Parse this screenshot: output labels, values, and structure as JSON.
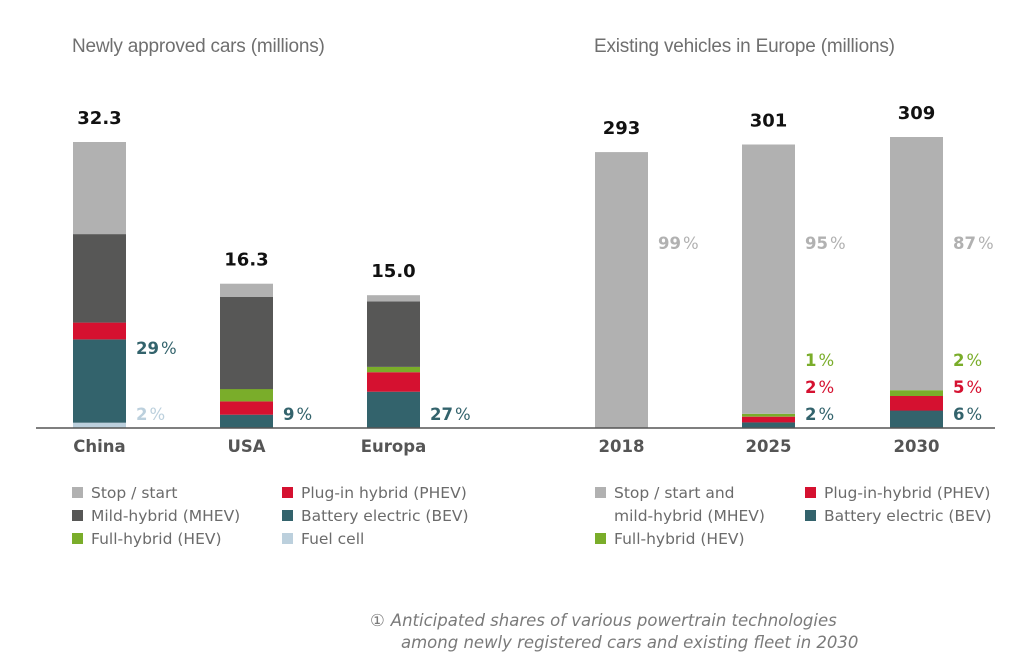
{
  "colors": {
    "stop_start": "#b1b1b1",
    "mhev": "#575756",
    "hev": "#7aad2a",
    "phev": "#d51130",
    "bev": "#33636c",
    "fuel_cell": "#bcd0dd",
    "axis": "#555555",
    "total_label": "#111111",
    "category_label": "#555555"
  },
  "chart_data": [
    {
      "type": "bar",
      "stacked": true,
      "title": "Newly approved cars (millions)",
      "categories": [
        "China",
        "USA",
        "Europa"
      ],
      "totals": [
        32.3,
        16.3,
        15.0
      ],
      "total_labels": [
        "32.3",
        "16.3",
        "15.0"
      ],
      "ylim": [
        0,
        32.3
      ],
      "grid": false,
      "series": [
        {
          "name": "Fuel cell",
          "key": "fuel_cell",
          "values": [
            0.6,
            0.0,
            0.0
          ]
        },
        {
          "name": "Battery electric (BEV)",
          "key": "bev",
          "values": [
            9.4,
            1.5,
            4.1
          ]
        },
        {
          "name": "Plug-in hybrid (PHEV)",
          "key": "phev",
          "values": [
            1.9,
            1.5,
            2.2
          ]
        },
        {
          "name": "Full-hybrid (HEV)",
          "key": "hev",
          "values": [
            0.0,
            1.4,
            0.6
          ]
        },
        {
          "name": "Mild-hybrid (MHEV)",
          "key": "mhev",
          "values": [
            10.0,
            10.4,
            7.4
          ]
        },
        {
          "name": "Stop/start",
          "key": "stop_start",
          "values": [
            10.4,
            1.5,
            0.7
          ]
        }
      ],
      "annotations": [
        {
          "category": "China",
          "series": "bev",
          "text": "29%"
        },
        {
          "category": "China",
          "series": "fuel_cell",
          "text": "2%"
        },
        {
          "category": "USA",
          "series": "bev",
          "text": "9%"
        },
        {
          "category": "Europa",
          "series": "bev",
          "text": "27%"
        }
      ],
      "legend": [
        {
          "label": "Stop / start",
          "key": "stop_start"
        },
        {
          "label": "Plug-in hybrid (PHEV)",
          "key": "phev"
        },
        {
          "label": "Mild-hybrid (MHEV)",
          "key": "mhev"
        },
        {
          "label": "Battery electric (BEV)",
          "key": "bev"
        },
        {
          "label": "Full-hybrid (HEV)",
          "key": "hev"
        },
        {
          "label": "Fuel cell",
          "key": "fuel_cell"
        }
      ],
      "legend_position": "bottom"
    },
    {
      "type": "bar",
      "stacked": true,
      "title": "Existing vehicles in Europe (millions)",
      "categories": [
        "2018",
        "2025",
        "2030"
      ],
      "totals": [
        293,
        301,
        309
      ],
      "total_labels": [
        "293",
        "301",
        "309"
      ],
      "ylim": [
        0,
        309
      ],
      "grid": false,
      "series_percent": [
        {
          "name": "Battery electric (BEV)",
          "key": "bev",
          "values": [
            0,
            2,
            6
          ]
        },
        {
          "name": "Plug-in-hybrid (PHEV)",
          "key": "phev",
          "values": [
            0,
            2,
            5
          ]
        },
        {
          "name": "Full-hybrid (HEV)",
          "key": "hev",
          "values": [
            0,
            1,
            2
          ]
        },
        {
          "name": "Stop / start and mild-hybrid (MHEV)",
          "key": "stop_start",
          "values": [
            99,
            95,
            87
          ]
        }
      ],
      "annotations": [
        {
          "category": "2018",
          "series": "stop_start",
          "text": "99%"
        },
        {
          "category": "2025",
          "series": "stop_start",
          "text": "95%"
        },
        {
          "category": "2025",
          "series": "hev",
          "text": "1%"
        },
        {
          "category": "2025",
          "series": "phev",
          "text": "2%"
        },
        {
          "category": "2025",
          "series": "bev",
          "text": "2%"
        },
        {
          "category": "2030",
          "series": "stop_start",
          "text": "87%"
        },
        {
          "category": "2030",
          "series": "hev",
          "text": "2%"
        },
        {
          "category": "2030",
          "series": "phev",
          "text": "5%"
        },
        {
          "category": "2030",
          "series": "bev",
          "text": "6%"
        }
      ],
      "legend": [
        {
          "label": "Stop / start and",
          "label2": "mild-hybrid (MHEV)",
          "key": "stop_start"
        },
        {
          "label": "Plug-in-hybrid (PHEV)",
          "key": "phev"
        },
        {
          "label": "Battery electric (BEV)",
          "key": "bev"
        },
        {
          "label": "Full-hybrid (HEV)",
          "key": "hev"
        }
      ],
      "legend_position": "bottom"
    }
  ],
  "caption": {
    "marker": "①",
    "line1": "Anticipated shares of various powertrain technologies",
    "line2": "among newly registered cars and existing fleet in 2030"
  }
}
